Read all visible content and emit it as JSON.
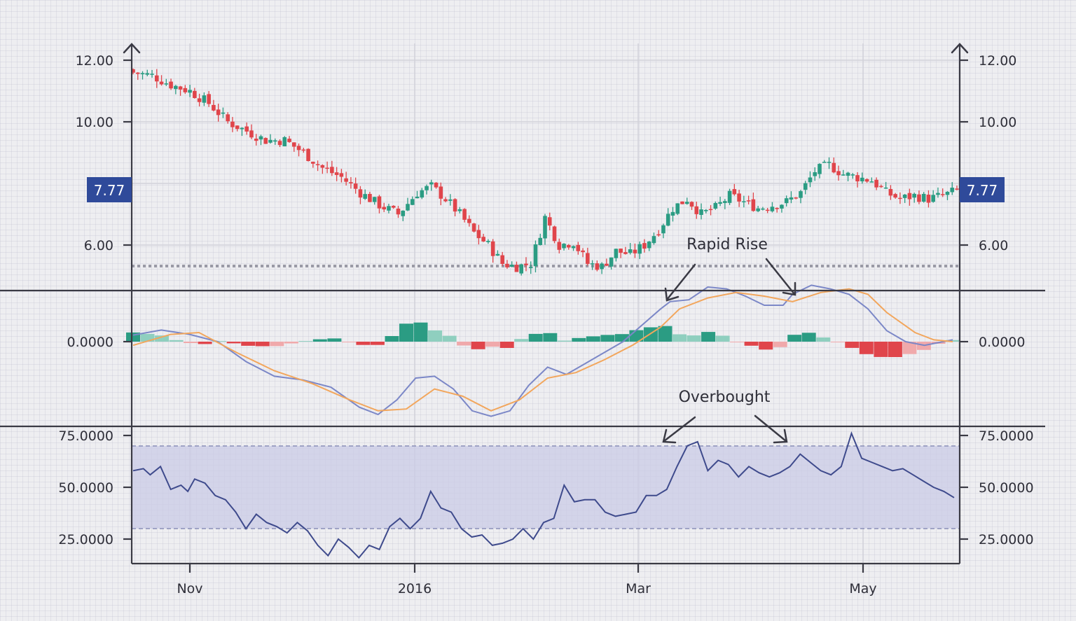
{
  "colors": {
    "up": "#2b9c83",
    "down": "#e0454b",
    "histogram_up_strong": "#2b9c83",
    "histogram_up_weak": "#8fcfbf",
    "histogram_down_strong": "#e0454b",
    "histogram_down_weak": "#f0a9ab",
    "macd_line": "#7b87c7",
    "signal_line": "#f2a65c",
    "rsi_line": "#3e4a8c",
    "rsi_band": "#c9cbe6",
    "price_tag": "#2f4a9a",
    "support_line": "#9a9aa6",
    "axis": "#3a3a44"
  },
  "annotations": {
    "rapid_rise": "Rapid Rise",
    "overbought": "Overbought"
  },
  "chart_data": [
    {
      "type": "candlestick",
      "x_ticks": [
        "Nov",
        "2016",
        "Mar",
        "May"
      ],
      "y_ticks": [
        "12.00",
        "10.00",
        "6.00"
      ],
      "y_tick_values": [
        12,
        10,
        6
      ],
      "ylim": [
        4.5,
        12.4
      ],
      "last_price_label": "7.77",
      "last_price": 7.77,
      "support_level": 5.35,
      "axes": "left-and-right",
      "grid": true,
      "close_anchors": [
        [
          0,
          11.6
        ],
        [
          4,
          11.5
        ],
        [
          8,
          11.2
        ],
        [
          12,
          11.0
        ],
        [
          16,
          10.6
        ],
        [
          20,
          10.0
        ],
        [
          24,
          9.7
        ],
        [
          28,
          9.4
        ],
        [
          32,
          9.4
        ],
        [
          36,
          9.0
        ],
        [
          40,
          8.5
        ],
        [
          44,
          8.2
        ],
        [
          48,
          7.7
        ],
        [
          52,
          7.3
        ],
        [
          56,
          7.0
        ],
        [
          60,
          7.7
        ],
        [
          63,
          7.9
        ],
        [
          66,
          7.5
        ],
        [
          69,
          7.0
        ],
        [
          72,
          6.4
        ],
        [
          75,
          6.0
        ],
        [
          78,
          5.4
        ],
        [
          81,
          5.3
        ],
        [
          84,
          5.4
        ],
        [
          87,
          6.9
        ],
        [
          90,
          6.0
        ],
        [
          93,
          6.1
        ],
        [
          96,
          5.4
        ],
        [
          99,
          5.3
        ],
        [
          102,
          5.8
        ],
        [
          105,
          5.7
        ],
        [
          108,
          6.0
        ],
        [
          111,
          6.5
        ],
        [
          114,
          7.2
        ],
        [
          117,
          7.5
        ],
        [
          120,
          7.0
        ],
        [
          123,
          7.2
        ],
        [
          126,
          7.6
        ],
        [
          129,
          7.4
        ],
        [
          132,
          7.2
        ],
        [
          135,
          7.3
        ],
        [
          138,
          7.4
        ],
        [
          141,
          7.7
        ],
        [
          144,
          8.4
        ],
        [
          147,
          8.6
        ],
        [
          150,
          8.3
        ],
        [
          153,
          8.2
        ],
        [
          156,
          8.1
        ],
        [
          159,
          7.7
        ],
        [
          162,
          7.5
        ],
        [
          165,
          7.6
        ],
        [
          168,
          7.5
        ],
        [
          171,
          7.6
        ],
        [
          174,
          7.77
        ]
      ],
      "candles": 175
    },
    {
      "type": "macd",
      "y_ticks": [
        "0.0000"
      ],
      "series": [
        {
          "role": "macd",
          "points": [
            [
              0,
              0.18
            ],
            [
              6,
              0.32
            ],
            [
              12,
              0.2
            ],
            [
              18,
              0.0
            ],
            [
              24,
              -0.55
            ],
            [
              30,
              -0.95
            ],
            [
              36,
              -1.05
            ],
            [
              42,
              -1.25
            ],
            [
              48,
              -1.8
            ],
            [
              52,
              -2.0
            ],
            [
              56,
              -1.6
            ],
            [
              60,
              -1.0
            ],
            [
              64,
              -0.95
            ],
            [
              68,
              -1.3
            ],
            [
              72,
              -1.9
            ],
            [
              76,
              -2.05
            ],
            [
              80,
              -1.9
            ],
            [
              84,
              -1.2
            ],
            [
              88,
              -0.7
            ],
            [
              92,
              -0.9
            ],
            [
              96,
              -0.6
            ],
            [
              100,
              -0.3
            ],
            [
              104,
              0.0
            ],
            [
              108,
              0.45
            ],
            [
              112,
              0.9
            ],
            [
              114,
              1.1
            ],
            [
              118,
              1.15
            ],
            [
              122,
              1.5
            ],
            [
              126,
              1.45
            ],
            [
              130,
              1.25
            ],
            [
              134,
              1.0
            ],
            [
              138,
              1.0
            ],
            [
              140,
              1.3
            ],
            [
              144,
              1.55
            ],
            [
              148,
              1.45
            ],
            [
              152,
              1.3
            ],
            [
              156,
              0.9
            ],
            [
              160,
              0.3
            ],
            [
              164,
              0.0
            ],
            [
              168,
              -0.1
            ],
            [
              174,
              0.05
            ]
          ]
        },
        {
          "role": "signal",
          "points": [
            [
              0,
              -0.1
            ],
            [
              8,
              0.2
            ],
            [
              14,
              0.25
            ],
            [
              22,
              -0.3
            ],
            [
              30,
              -0.8
            ],
            [
              38,
              -1.15
            ],
            [
              46,
              -1.6
            ],
            [
              52,
              -1.9
            ],
            [
              58,
              -1.85
            ],
            [
              64,
              -1.3
            ],
            [
              70,
              -1.5
            ],
            [
              76,
              -1.9
            ],
            [
              82,
              -1.6
            ],
            [
              88,
              -1.0
            ],
            [
              94,
              -0.85
            ],
            [
              100,
              -0.5
            ],
            [
              106,
              -0.1
            ],
            [
              112,
              0.4
            ],
            [
              116,
              0.9
            ],
            [
              122,
              1.2
            ],
            [
              128,
              1.35
            ],
            [
              134,
              1.25
            ],
            [
              140,
              1.1
            ],
            [
              146,
              1.35
            ],
            [
              152,
              1.45
            ],
            [
              156,
              1.3
            ],
            [
              160,
              0.8
            ],
            [
              166,
              0.25
            ],
            [
              170,
              0.05
            ],
            [
              174,
              0.0
            ]
          ]
        }
      ]
    },
    {
      "type": "line",
      "y_ticks": [
        "75.0000",
        "50.0000",
        "25.0000"
      ],
      "y_tick_values": [
        75,
        50,
        25
      ],
      "ylim": [
        9,
        81
      ],
      "overbought_level": 70,
      "oversold_level": 30,
      "points": [
        [
          0,
          58
        ],
        [
          3,
          59
        ],
        [
          5,
          56
        ],
        [
          8,
          60
        ],
        [
          11,
          49
        ],
        [
          14,
          51
        ],
        [
          16,
          48
        ],
        [
          18,
          54
        ],
        [
          21,
          52
        ],
        [
          24,
          46
        ],
        [
          27,
          44
        ],
        [
          30,
          38
        ],
        [
          33,
          30
        ],
        [
          36,
          37
        ],
        [
          39,
          33
        ],
        [
          42,
          31
        ],
        [
          45,
          28
        ],
        [
          48,
          33
        ],
        [
          51,
          29
        ],
        [
          54,
          22
        ],
        [
          57,
          17
        ],
        [
          60,
          25
        ],
        [
          63,
          21
        ],
        [
          66,
          16
        ],
        [
          69,
          22
        ],
        [
          72,
          20
        ],
        [
          75,
          31
        ],
        [
          78,
          35
        ],
        [
          81,
          30
        ],
        [
          84,
          35
        ],
        [
          87,
          48
        ],
        [
          90,
          40
        ],
        [
          93,
          38
        ],
        [
          96,
          30
        ],
        [
          99,
          26
        ],
        [
          102,
          27
        ],
        [
          105,
          22
        ],
        [
          108,
          23
        ],
        [
          111,
          25
        ],
        [
          114,
          30
        ],
        [
          117,
          25
        ],
        [
          120,
          33
        ],
        [
          123,
          35
        ],
        [
          126,
          51
        ],
        [
          129,
          43
        ],
        [
          132,
          44
        ],
        [
          135,
          44
        ],
        [
          138,
          38
        ],
        [
          141,
          36
        ],
        [
          144,
          37
        ],
        [
          147,
          38
        ],
        [
          150,
          46
        ],
        [
          153,
          46
        ],
        [
          156,
          49
        ],
        [
          159,
          60
        ],
        [
          162,
          70
        ],
        [
          165,
          72
        ],
        [
          168,
          58
        ],
        [
          171,
          63
        ],
        [
          174,
          61
        ],
        [
          177,
          55
        ],
        [
          180,
          60
        ],
        [
          183,
          57
        ],
        [
          186,
          55
        ],
        [
          189,
          57
        ],
        [
          192,
          60
        ],
        [
          195,
          66
        ],
        [
          198,
          62
        ],
        [
          201,
          58
        ],
        [
          204,
          56
        ],
        [
          207,
          60
        ],
        [
          210,
          76
        ],
        [
          213,
          64
        ],
        [
          216,
          62
        ],
        [
          219,
          60
        ],
        [
          222,
          58
        ],
        [
          225,
          59
        ],
        [
          228,
          56
        ],
        [
          231,
          53
        ],
        [
          234,
          50
        ],
        [
          237,
          48
        ],
        [
          240,
          45
        ]
      ]
    }
  ]
}
